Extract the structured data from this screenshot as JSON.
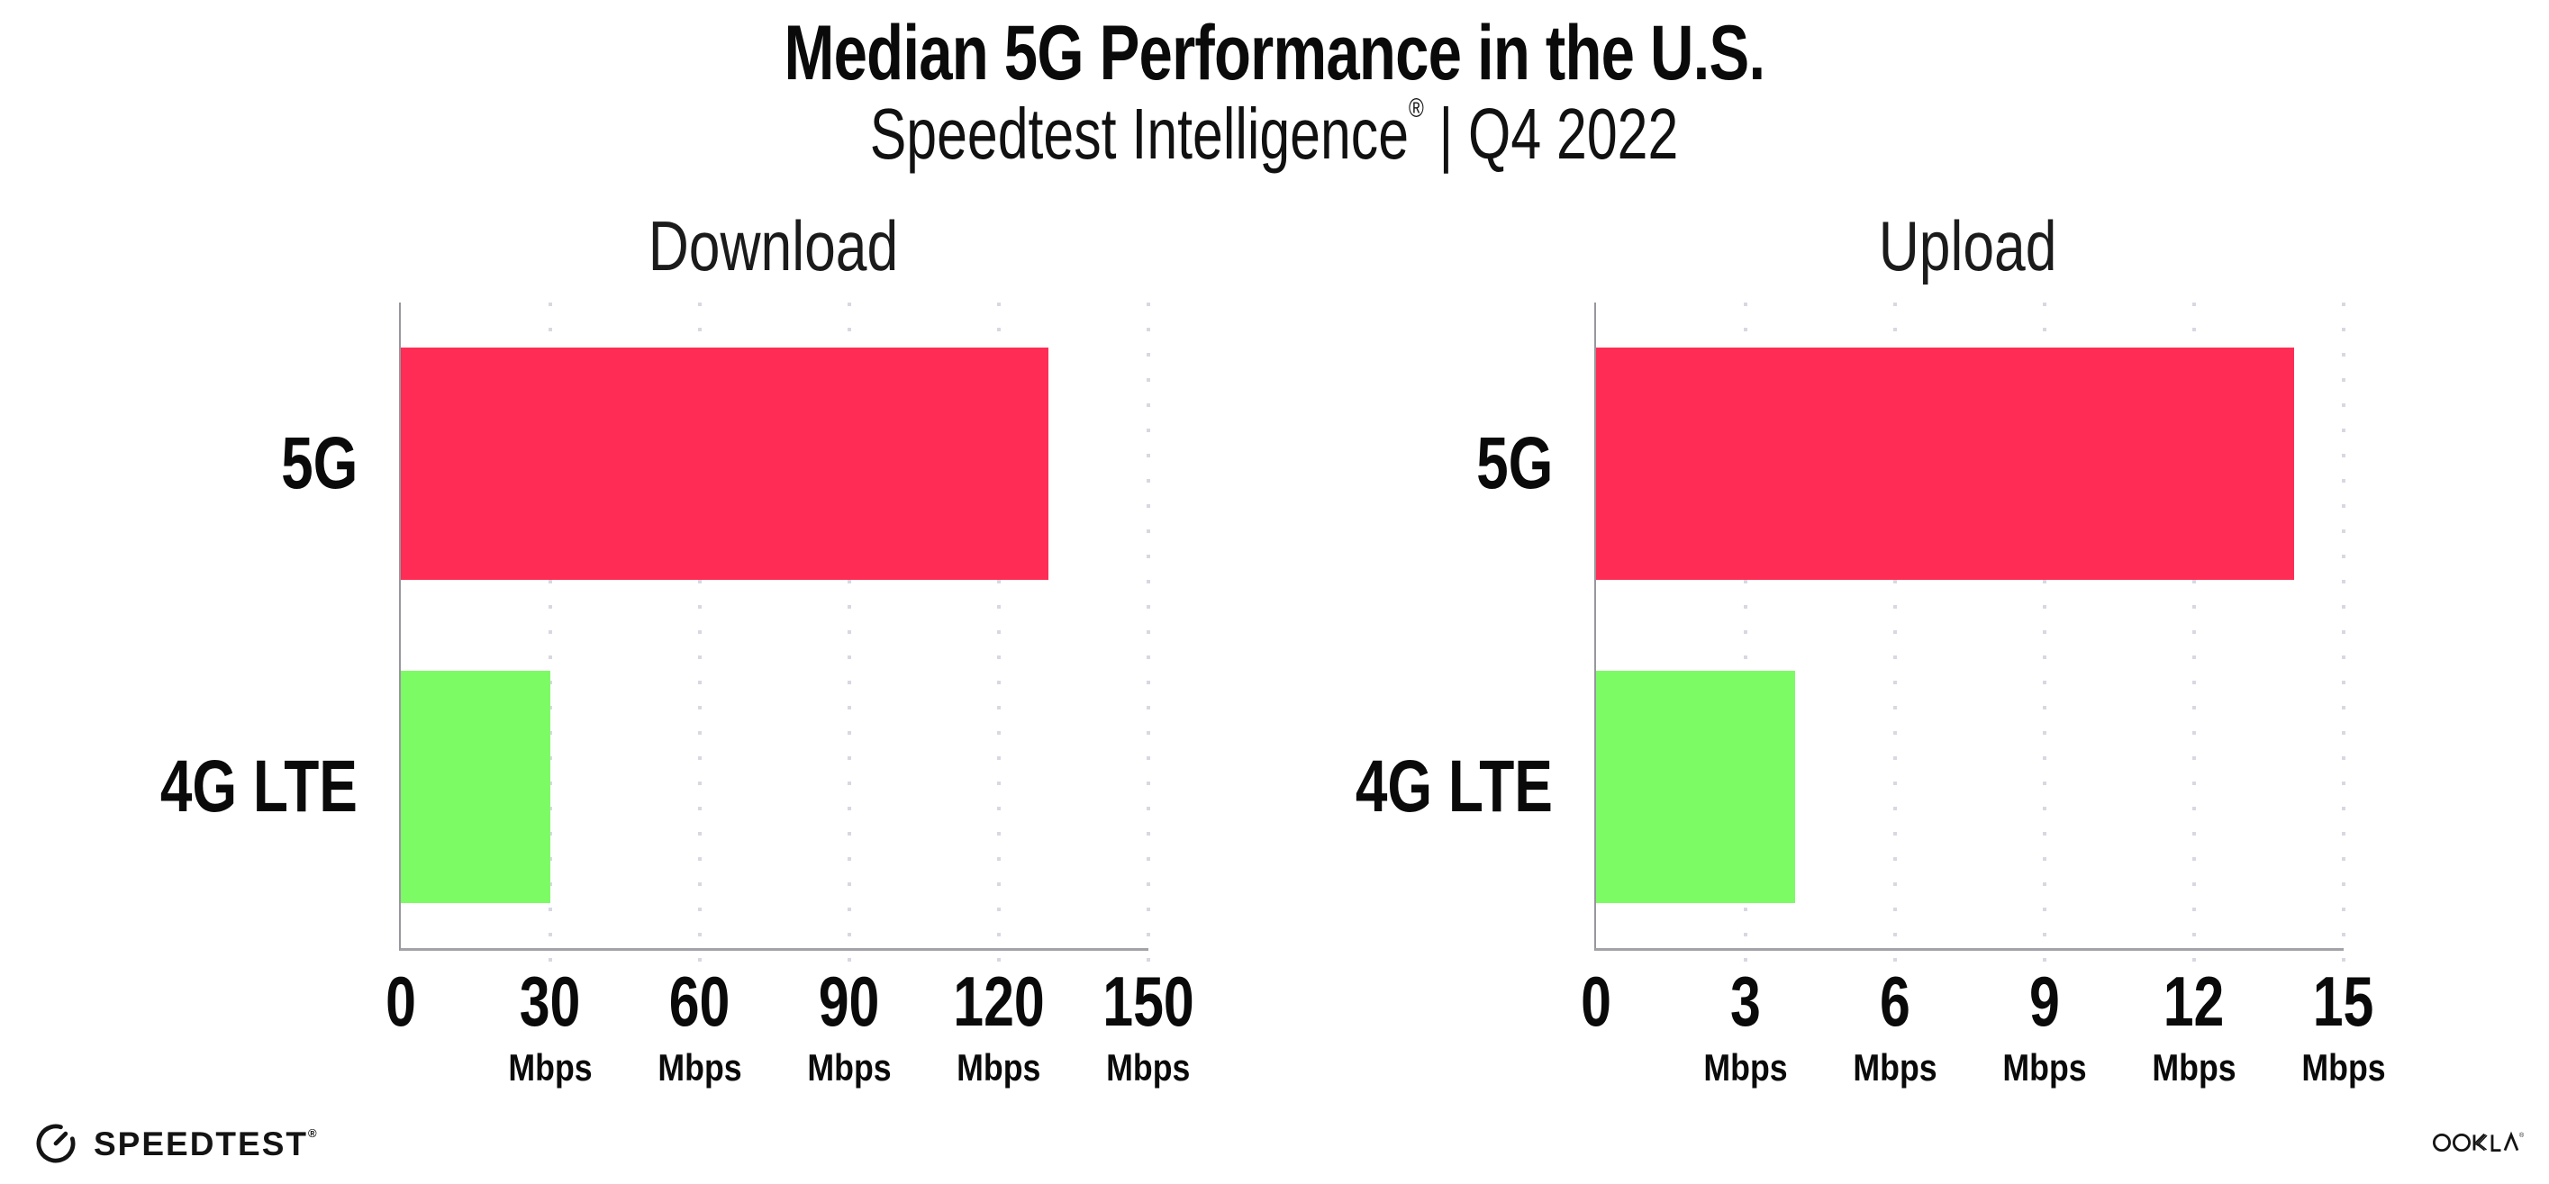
{
  "page": {
    "title": "Median 5G Performance in the U.S.",
    "subtitle": {
      "brand": "Speedtest Intelligence",
      "registered_mark": "®",
      "separator": "|",
      "period": "Q4 2022"
    }
  },
  "chart_data": [
    {
      "type": "bar",
      "orientation": "horizontal",
      "title": "Download",
      "categories": [
        "5G",
        "4G LTE"
      ],
      "values": [
        130,
        30
      ],
      "unit": "Mbps",
      "xlim": [
        0,
        150
      ],
      "xticks": [
        0,
        30,
        60,
        90,
        120,
        150
      ],
      "bar_colors": [
        "#FF2D55",
        "#7DFB64"
      ],
      "grid": "dotted-vertical",
      "legend": "none"
    },
    {
      "type": "bar",
      "orientation": "horizontal",
      "title": "Upload",
      "categories": [
        "5G",
        "4G LTE"
      ],
      "values": [
        14,
        4
      ],
      "unit": "Mbps",
      "xlim": [
        0,
        15
      ],
      "xticks": [
        0,
        3,
        6,
        9,
        12,
        15
      ],
      "bar_colors": [
        "#FF2D55",
        "#7DFB64"
      ],
      "grid": "dotted-vertical",
      "legend": "none"
    }
  ],
  "colors": {
    "bar_5g": "#FF2D55",
    "bar_4g_lte": "#7DFB64",
    "gridline": "#D8D8E2",
    "axis": "#9B9BA1",
    "text": "#0A0A0A"
  },
  "footer": {
    "speedtest_label": "SPEEDTEST",
    "speedtest_mark": "®",
    "ookla_label": "OOKLA",
    "ookla_mark": "®"
  }
}
